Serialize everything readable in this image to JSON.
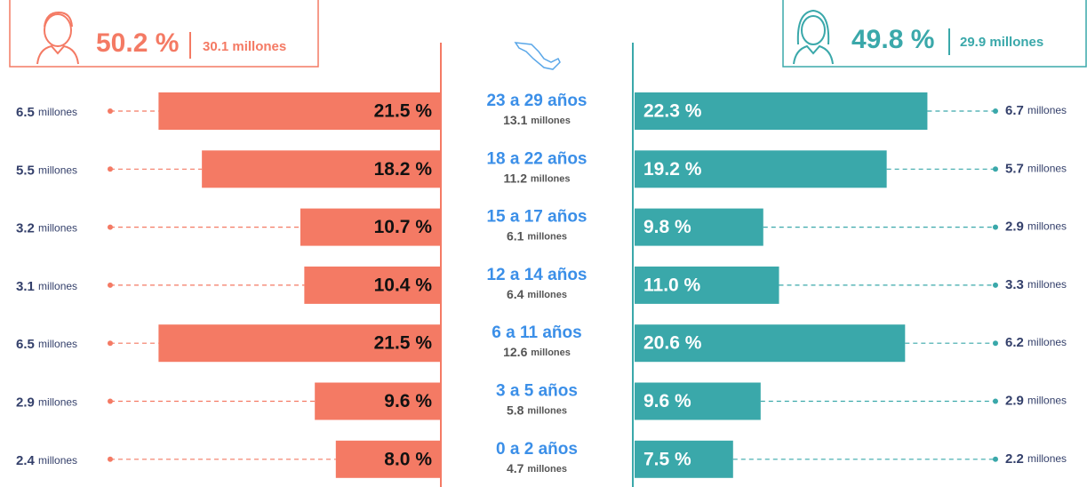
{
  "chart_data": {
    "type": "pyramid",
    "categories": [
      "23 a 29 años",
      "18 a 22 años",
      "15 a 17 años",
      "12 a 14 años",
      "6 a 11 años",
      "3 a 5 años",
      "0 a 2 años"
    ],
    "totals": [
      13.1,
      11.2,
      6.1,
      6.4,
      12.6,
      5.8,
      4.7
    ],
    "unit": "millones",
    "xlim": [
      0,
      22
    ],
    "series": [
      {
        "color": "#f47a64",
        "share": 50.2,
        "share_label": "50.2 %",
        "population": 30.1,
        "values": [
          21.5,
          18.2,
          10.7,
          10.4,
          21.5,
          9.6,
          8.0
        ],
        "value_labels": [
          "21.5 %",
          "18.2 %",
          "10.7 %",
          "10.4 %",
          "21.5 %",
          "9.6 %",
          "8.0 %"
        ],
        "counts": [
          6.5,
          5.5,
          3.2,
          3.1,
          6.5,
          2.9,
          2.4
        ]
      },
      {
        "color": "#3aa8aa",
        "share": 49.8,
        "share_label": "49.8 %",
        "population": 29.9,
        "values": [
          22.3,
          19.2,
          9.8,
          11.0,
          20.6,
          9.6,
          7.5
        ],
        "value_labels": [
          "22.3 %",
          "19.2 %",
          "9.8 %",
          "11.0 %",
          "20.6 %",
          "9.6 %",
          "7.5 %"
        ],
        "counts": [
          6.7,
          5.7,
          2.9,
          3.3,
          6.2,
          2.9,
          2.2
        ]
      }
    ]
  }
}
